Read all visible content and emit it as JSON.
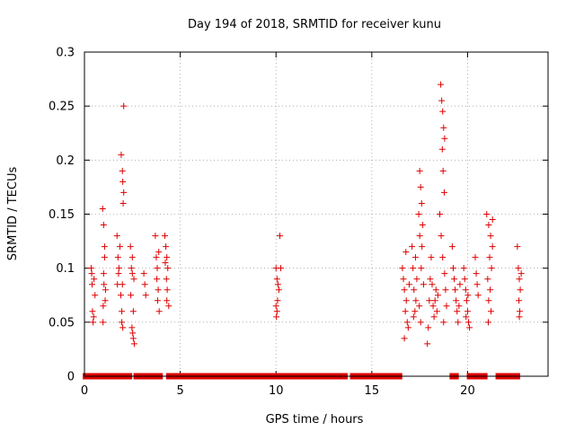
{
  "chart_data": {
    "type": "scatter",
    "title": "Day 194 of 2018, SRMTID for receiver kunu",
    "xlabel": "GPS time / hours",
    "ylabel": "SRMTID / TECUs",
    "xlim": [
      0,
      24.2
    ],
    "ylim": [
      0,
      0.3
    ],
    "grid": true,
    "marker": "+",
    "color": "#dd0000",
    "x_ticks": [
      0,
      5,
      10,
      15,
      20
    ],
    "y_ticks": [
      0,
      0.05,
      0.1,
      0.15,
      0.2,
      0.25,
      0.3
    ],
    "x_tick_labels": [
      "0",
      "5",
      "10",
      "15",
      "20"
    ],
    "y_tick_labels": [
      "0",
      "0.05",
      "0.1",
      "0.15",
      "0.2",
      "0.25",
      "0.3"
    ],
    "series": [
      {
        "name": "SRMTID",
        "points": [
          [
            0.35,
            0.1
          ],
          [
            0.4,
            0.085
          ],
          [
            0.42,
            0.06
          ],
          [
            0.45,
            0.05
          ],
          [
            0.5,
            0.09
          ],
          [
            0.55,
            0.075
          ],
          [
            0.38,
            0.095
          ],
          [
            0.48,
            0.055
          ],
          [
            0.95,
            0.155
          ],
          [
            1.0,
            0.14
          ],
          [
            1.05,
            0.12
          ],
          [
            1.0,
            0.095
          ],
          [
            1.1,
            0.08
          ],
          [
            0.98,
            0.065
          ],
          [
            1.02,
            0.085
          ],
          [
            1.08,
            0.07
          ],
          [
            1.05,
            0.11
          ],
          [
            0.97,
            0.05
          ],
          [
            1.7,
            0.13
          ],
          [
            1.75,
            0.11
          ],
          [
            1.8,
            0.1
          ],
          [
            1.72,
            0.085
          ],
          [
            1.85,
            0.12
          ],
          [
            1.78,
            0.095
          ],
          [
            1.9,
            0.075
          ],
          [
            1.95,
            0.06
          ],
          [
            1.92,
            0.205
          ],
          [
            1.98,
            0.19
          ],
          [
            2.0,
            0.18
          ],
          [
            2.05,
            0.17
          ],
          [
            2.02,
            0.16
          ],
          [
            2.05,
            0.25
          ],
          [
            1.95,
            0.05
          ],
          [
            2.0,
            0.045
          ],
          [
            1.98,
            0.085
          ],
          [
            2.4,
            0.12
          ],
          [
            2.45,
            0.1
          ],
          [
            2.5,
            0.095
          ],
          [
            2.42,
            0.075
          ],
          [
            2.55,
            0.06
          ],
          [
            2.48,
            0.045
          ],
          [
            2.52,
            0.04
          ],
          [
            2.55,
            0.035
          ],
          [
            2.6,
            0.03
          ],
          [
            2.5,
            0.11
          ],
          [
            2.58,
            0.09
          ],
          [
            3.1,
            0.095
          ],
          [
            3.15,
            0.085
          ],
          [
            3.2,
            0.075
          ],
          [
            3.7,
            0.13
          ],
          [
            3.75,
            0.11
          ],
          [
            3.8,
            0.1
          ],
          [
            3.78,
            0.09
          ],
          [
            3.85,
            0.08
          ],
          [
            3.82,
            0.07
          ],
          [
            3.9,
            0.06
          ],
          [
            3.88,
            0.115
          ],
          [
            4.2,
            0.13
          ],
          [
            4.25,
            0.12
          ],
          [
            4.3,
            0.11
          ],
          [
            4.35,
            0.1
          ],
          [
            4.28,
            0.09
          ],
          [
            4.32,
            0.08
          ],
          [
            4.3,
            0.07
          ],
          [
            4.4,
            0.065
          ],
          [
            4.22,
            0.105
          ],
          [
            10.0,
            0.1
          ],
          [
            10.05,
            0.09
          ],
          [
            10.1,
            0.085
          ],
          [
            10.15,
            0.08
          ],
          [
            10.08,
            0.07
          ],
          [
            10.0,
            0.065
          ],
          [
            10.05,
            0.06
          ],
          [
            10.02,
            0.055
          ],
          [
            10.2,
            0.13
          ],
          [
            10.25,
            0.1
          ],
          [
            16.6,
            0.1
          ],
          [
            16.65,
            0.09
          ],
          [
            16.7,
            0.08
          ],
          [
            16.8,
            0.07
          ],
          [
            16.75,
            0.06
          ],
          [
            16.85,
            0.05
          ],
          [
            16.9,
            0.045
          ],
          [
            16.7,
            0.035
          ],
          [
            16.95,
            0.085
          ],
          [
            16.78,
            0.115
          ],
          [
            17.1,
            0.12
          ],
          [
            17.15,
            0.1
          ],
          [
            17.2,
            0.08
          ],
          [
            17.25,
            0.06
          ],
          [
            17.3,
            0.07
          ],
          [
            17.35,
            0.09
          ],
          [
            17.18,
            0.055
          ],
          [
            17.28,
            0.11
          ],
          [
            17.5,
            0.19
          ],
          [
            17.55,
            0.175
          ],
          [
            17.6,
            0.16
          ],
          [
            17.45,
            0.15
          ],
          [
            17.65,
            0.14
          ],
          [
            17.5,
            0.13
          ],
          [
            17.62,
            0.12
          ],
          [
            17.58,
            0.1
          ],
          [
            17.7,
            0.085
          ],
          [
            17.48,
            0.065
          ],
          [
            17.55,
            0.05
          ],
          [
            17.9,
            0.03
          ],
          [
            17.95,
            0.045
          ],
          [
            18.0,
            0.07
          ],
          [
            18.05,
            0.09
          ],
          [
            18.1,
            0.11
          ],
          [
            18.15,
            0.085
          ],
          [
            18.2,
            0.065
          ],
          [
            18.25,
            0.055
          ],
          [
            18.3,
            0.07
          ],
          [
            18.35,
            0.08
          ],
          [
            18.4,
            0.06
          ],
          [
            18.45,
            0.075
          ],
          [
            18.6,
            0.27
          ],
          [
            18.65,
            0.255
          ],
          [
            18.7,
            0.245
          ],
          [
            18.75,
            0.23
          ],
          [
            18.8,
            0.22
          ],
          [
            18.68,
            0.21
          ],
          [
            18.72,
            0.19
          ],
          [
            18.78,
            0.17
          ],
          [
            18.55,
            0.15
          ],
          [
            18.62,
            0.13
          ],
          [
            18.7,
            0.11
          ],
          [
            18.8,
            0.095
          ],
          [
            18.85,
            0.08
          ],
          [
            18.9,
            0.065
          ],
          [
            18.75,
            0.05
          ],
          [
            19.2,
            0.12
          ],
          [
            19.25,
            0.1
          ],
          [
            19.3,
            0.09
          ],
          [
            19.35,
            0.08
          ],
          [
            19.4,
            0.07
          ],
          [
            19.45,
            0.06
          ],
          [
            19.5,
            0.05
          ],
          [
            19.55,
            0.065
          ],
          [
            19.6,
            0.085
          ],
          [
            19.8,
            0.1
          ],
          [
            19.85,
            0.09
          ],
          [
            19.9,
            0.08
          ],
          [
            19.95,
            0.07
          ],
          [
            20.0,
            0.06
          ],
          [
            20.05,
            0.05
          ],
          [
            20.1,
            0.045
          ],
          [
            19.92,
            0.055
          ],
          [
            20.02,
            0.075
          ],
          [
            20.4,
            0.11
          ],
          [
            20.45,
            0.095
          ],
          [
            20.5,
            0.085
          ],
          [
            20.55,
            0.075
          ],
          [
            21.0,
            0.15
          ],
          [
            21.1,
            0.14
          ],
          [
            21.2,
            0.13
          ],
          [
            21.3,
            0.12
          ],
          [
            21.15,
            0.11
          ],
          [
            21.25,
            0.1
          ],
          [
            21.05,
            0.09
          ],
          [
            21.18,
            0.08
          ],
          [
            21.1,
            0.07
          ],
          [
            21.22,
            0.06
          ],
          [
            21.08,
            0.05
          ],
          [
            21.3,
            0.145
          ],
          [
            22.6,
            0.12
          ],
          [
            22.65,
            0.1
          ],
          [
            22.7,
            0.09
          ],
          [
            22.75,
            0.08
          ],
          [
            22.68,
            0.07
          ],
          [
            22.72,
            0.06
          ],
          [
            22.7,
            0.055
          ],
          [
            22.8,
            0.095
          ]
        ]
      }
    ],
    "zero_bands": [
      [
        0.05,
        0.3
      ],
      [
        0.55,
        0.85
      ],
      [
        1.1,
        2.35
      ],
      [
        2.7,
        3.55
      ],
      [
        3.75,
        3.95
      ],
      [
        4.4,
        12.1
      ],
      [
        12.3,
        13.0
      ],
      [
        13.1,
        13.6
      ],
      [
        14.0,
        14.2
      ],
      [
        14.4,
        16.45
      ],
      [
        19.2,
        19.4
      ],
      [
        20.1,
        20.2
      ],
      [
        20.4,
        20.9
      ],
      [
        21.6,
        22.6
      ]
    ]
  }
}
